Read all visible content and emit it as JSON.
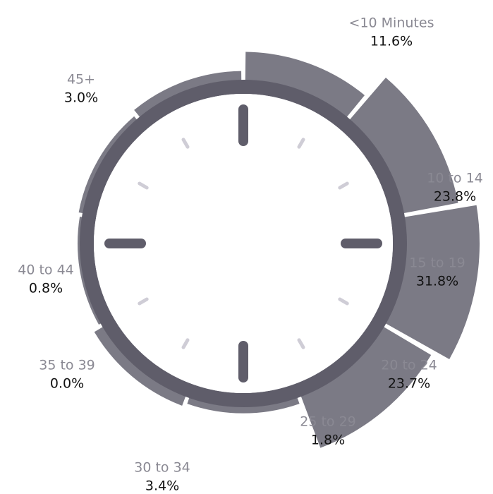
{
  "chart_data": {
    "type": "radial_bar",
    "categories": [
      "<10 Minutes",
      "10 to 14",
      "15 to 19",
      "20 to 24",
      "25 to 29",
      "30 to 34",
      "35 to 39",
      "40 to 44",
      "45+"
    ],
    "values": [
      11.6,
      23.8,
      31.8,
      23.7,
      1.8,
      3.4,
      0.0,
      0.8,
      3.0
    ],
    "value_labels": [
      "11.6%",
      "23.8%",
      "31.8%",
      "23.7%",
      "1.8%",
      "3.4%",
      "0.0%",
      "0.8%",
      "3.0%"
    ],
    "color": "#7b7a85"
  }
}
